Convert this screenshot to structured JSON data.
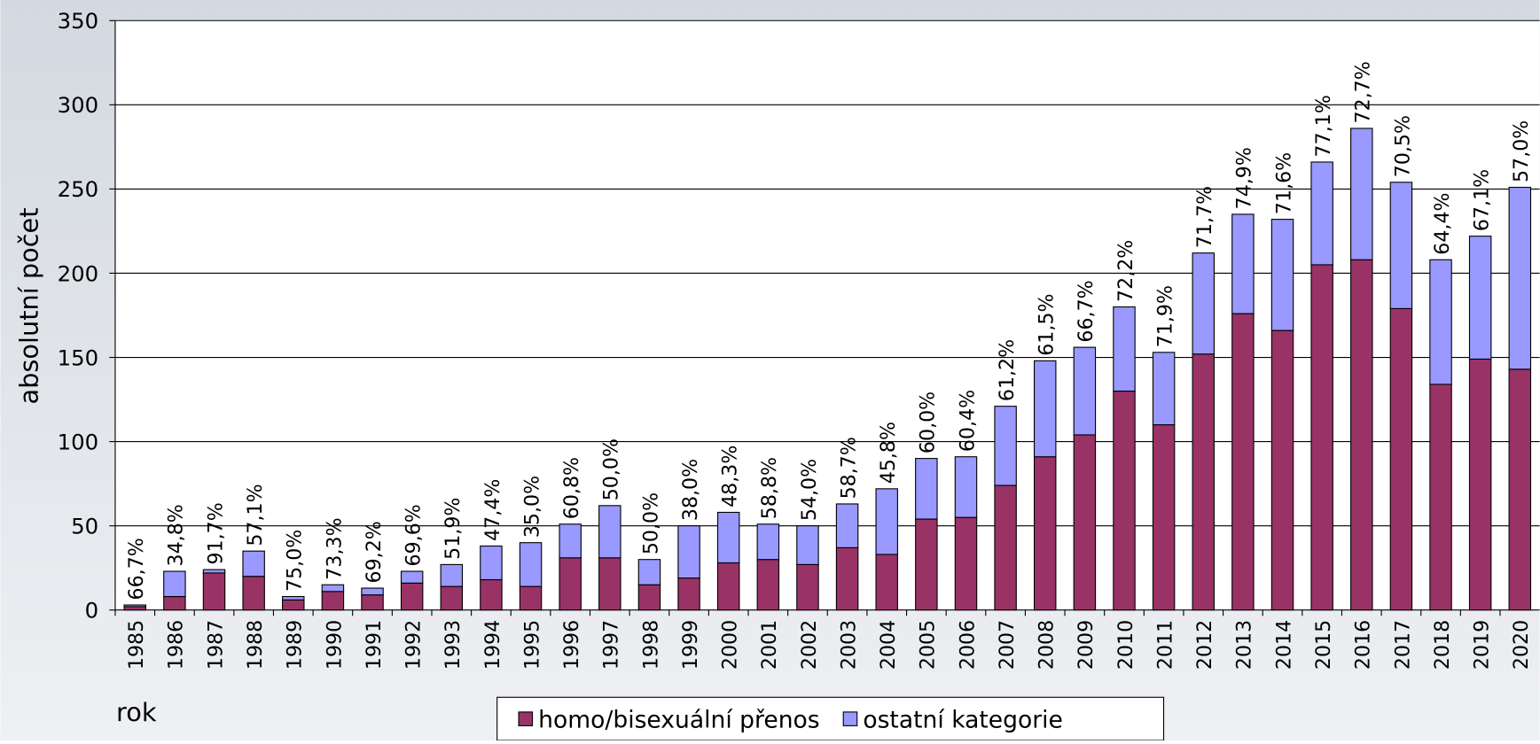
{
  "chart_data": {
    "type": "stacked_bar",
    "y_label": "absolutní počet",
    "x_label": "rok",
    "categories": [
      "1985",
      "1986",
      "1987",
      "1988",
      "1989",
      "1990",
      "1991",
      "1992",
      "1993",
      "1994",
      "1995",
      "1996",
      "1997",
      "1998",
      "1999",
      "2000",
      "2001",
      "2002",
      "2003",
      "2004",
      "2005",
      "2006",
      "2007",
      "2008",
      "2009",
      "2010",
      "2011",
      "2012",
      "2013",
      "2014",
      "2015",
      "2016",
      "2017",
      "2018",
      "2019",
      "2020"
    ],
    "series": [
      {
        "name": "homo/bisexuální přenos",
        "color": "#993366",
        "values": [
          2,
          8,
          22,
          20,
          6,
          11,
          9,
          16,
          14,
          18,
          14,
          31,
          31,
          15,
          19,
          28,
          30,
          27,
          37,
          33,
          54,
          55,
          74,
          91,
          104,
          130,
          110,
          152,
          176,
          166,
          205,
          208,
          179,
          134,
          149,
          143
        ]
      },
      {
        "name": "ostatní kategorie",
        "color": "#9999ff",
        "values": [
          1,
          15,
          2,
          15,
          2,
          4,
          4,
          7,
          13,
          20,
          26,
          20,
          31,
          15,
          31,
          30,
          21,
          23,
          26,
          39,
          36,
          36,
          47,
          57,
          52,
          50,
          43,
          60,
          59,
          66,
          61,
          78,
          75,
          74,
          73,
          108
        ]
      }
    ],
    "percent_labels": [
      "66,7%",
      "34,8%",
      "91,7%",
      "57,1%",
      "75,0%",
      "73,3%",
      "69,2%",
      "69,6%",
      "51,9%",
      "47,4%",
      "35,0%",
      "60,8%",
      "50,0%",
      "50,0%",
      "38,0%",
      "48,3%",
      "58,8%",
      "54,0%",
      "58,7%",
      "45,8%",
      "60,0%",
      "60,4%",
      "61,2%",
      "61,5%",
      "66,7%",
      "72,2%",
      "71,9%",
      "71,7%",
      "74,9%",
      "71,6%",
      "77,1%",
      "72,7%",
      "70,5%",
      "64,4%",
      "67,1%",
      "57,0%"
    ],
    "ylim": [
      0,
      350
    ],
    "yticks": [
      0,
      50,
      100,
      150,
      200,
      250,
      300,
      350
    ],
    "grid": true
  }
}
